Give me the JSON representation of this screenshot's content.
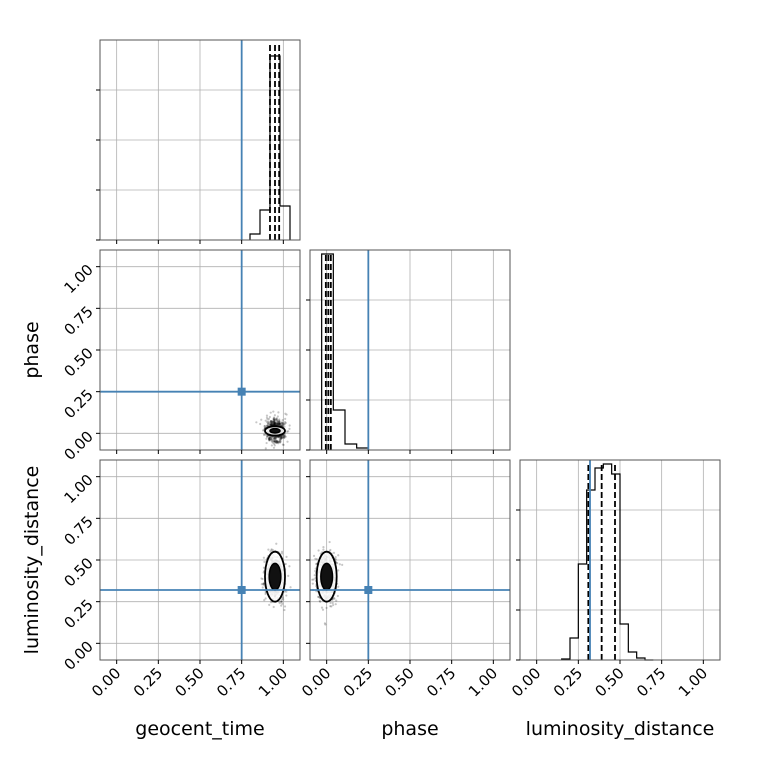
{
  "chart_data": {
    "type": "corner",
    "parameters": [
      "geocent_time",
      "phase",
      "luminosity_distance"
    ],
    "axis_labels": {
      "bottom": [
        "geocent_time",
        "phase",
        "luminosity_distance"
      ],
      "left": [
        "phase",
        "luminosity_distance"
      ]
    },
    "range": [
      -0.1,
      1.1
    ],
    "ticks": [
      0.0,
      0.25,
      0.5,
      0.75,
      1.0
    ],
    "tick_labels": [
      "0.00",
      "0.25",
      "0.50",
      "0.75",
      "1.00"
    ],
    "grid": true,
    "truth_color": "#4682b4",
    "truths": {
      "geocent_time": 0.75,
      "phase": 0.25,
      "luminosity_distance": 0.32
    },
    "histograms": [
      {
        "param": "geocent_time",
        "bins": [
          0.8,
          0.86,
          0.92,
          0.98,
          1.04
        ],
        "bin_width": 0.06,
        "heights": [
          0.03,
          0.15,
          0.92,
          0.17
        ],
        "quantiles": [
          0.92,
          0.95,
          0.975
        ]
      },
      {
        "param": "phase",
        "bins": [
          -0.03,
          0.04,
          0.11,
          0.18,
          0.25
        ],
        "bin_width": 0.07,
        "heights": [
          0.98,
          0.2,
          0.03,
          0.01
        ],
        "quantiles": [
          -0.005,
          0.01,
          0.025
        ]
      },
      {
        "param": "luminosity_distance",
        "bins": [
          0.15,
          0.2,
          0.25,
          0.3,
          0.35,
          0.4,
          0.45,
          0.5,
          0.55,
          0.6,
          0.65,
          0.7
        ],
        "bin_width": 0.05,
        "heights": [
          0.005,
          0.11,
          0.48,
          0.85,
          0.96,
          0.98,
          0.93,
          0.18,
          0.04,
          0.01,
          0.0
        ],
        "quantiles": [
          0.31,
          0.39,
          0.47
        ]
      }
    ],
    "scatter_panels": [
      {
        "x": "geocent_time",
        "y": "phase",
        "center": [
          0.95,
          0.015
        ],
        "spread": [
          0.028,
          0.035
        ],
        "contours": [
          [
            0.06,
            0.028
          ],
          [
            0.03,
            0.013
          ]
        ]
      },
      {
        "x": "geocent_time",
        "y": "luminosity_distance",
        "center": [
          0.95,
          0.4
        ],
        "spread": [
          0.028,
          0.07
        ],
        "contours": [
          [
            0.06,
            0.15
          ],
          [
            0.035,
            0.08
          ]
        ]
      },
      {
        "x": "phase",
        "y": "luminosity_distance",
        "center": [
          0.0,
          0.4
        ],
        "spread": [
          0.028,
          0.07
        ],
        "contours": [
          [
            0.06,
            0.15
          ],
          [
            0.035,
            0.08
          ]
        ]
      }
    ]
  }
}
